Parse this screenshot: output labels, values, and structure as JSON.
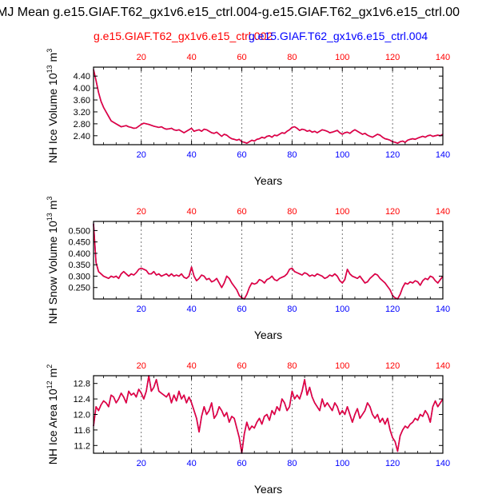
{
  "title": "MJ Mean g.e15.GIAF.T62_gx1v6.e15_ctrl.004-g.e15.GIAF.T62_gx1v6.e15_ctrl.00",
  "subtitle_red": "g.e15.GIAF.T62_gx1v6.e15_ctrl.002",
  "subtitle_blue": "g.e15.GIAF.T62_gx1v6.e15_ctrl.004",
  "colors": {
    "red": "#ff0000",
    "blue": "#0000ff",
    "line_red": "#e8003a",
    "line_blue": "#3030ff"
  },
  "chart_data": [
    {
      "type": "line",
      "ylabel": "NH Ice Volume 10^13 m^3",
      "ylabel_main": "NH Ice Volume 10",
      "ylabel_exp": "13",
      "ylabel_unit": "m",
      "ylabel_unit_exp": "3",
      "xlabel": "Years",
      "xlim": [
        1,
        140
      ],
      "ylim": [
        2.1,
        4.7
      ],
      "yticks": [
        "2.40",
        "2.80",
        "3.20",
        "3.60",
        "4.00",
        "4.40"
      ],
      "xticks_bottom": [
        "20",
        "40",
        "60",
        "80",
        "100",
        "120",
        "140"
      ],
      "xticks_top": [
        "20",
        "40",
        "60",
        "80",
        "100",
        "120",
        "140"
      ],
      "grid": "vertical dashed at every 20 years",
      "series": [
        {
          "name": "g.e15.GIAF.T62_gx1v6.e15_ctrl.002",
          "color": "red",
          "values": [
            4.62,
            4.25,
            3.85,
            3.55,
            3.35,
            3.2,
            3.05,
            2.9,
            2.85,
            2.8,
            2.75,
            2.7,
            2.72,
            2.74,
            2.7,
            2.68,
            2.65,
            2.66,
            2.72,
            2.78,
            2.82,
            2.8,
            2.78,
            2.75,
            2.72,
            2.7,
            2.68,
            2.7,
            2.65,
            2.62,
            2.63,
            2.65,
            2.6,
            2.58,
            2.6,
            2.55,
            2.5,
            2.55,
            2.6,
            2.65,
            2.55,
            2.58,
            2.6,
            2.55,
            2.62,
            2.6,
            2.55,
            2.5,
            2.48,
            2.52,
            2.45,
            2.38,
            2.45,
            2.42,
            2.35,
            2.3,
            2.28,
            2.25,
            2.28,
            2.2,
            2.18,
            2.15,
            2.2,
            2.25,
            2.22,
            2.28,
            2.3,
            2.35,
            2.32,
            2.38,
            2.4,
            2.35,
            2.42,
            2.4,
            2.45,
            2.5,
            2.48,
            2.55,
            2.6,
            2.68,
            2.7,
            2.65,
            2.58,
            2.62,
            2.6,
            2.55,
            2.58,
            2.52,
            2.55,
            2.5,
            2.55,
            2.6,
            2.58,
            2.55,
            2.5,
            2.52,
            2.55,
            2.58,
            2.5,
            2.45,
            2.5,
            2.52,
            2.48,
            2.55,
            2.6,
            2.55,
            2.5,
            2.45,
            2.48,
            2.42,
            2.38,
            2.35,
            2.4,
            2.45,
            2.42,
            2.35,
            2.3,
            2.28,
            2.25,
            2.2,
            2.18,
            2.15,
            2.2,
            2.22,
            2.18,
            2.25,
            2.28,
            2.3,
            2.28,
            2.32,
            2.35,
            2.38,
            2.35,
            2.4,
            2.42,
            2.38,
            2.4,
            2.42,
            2.4,
            2.45
          ]
        },
        {
          "name": "g.e15.GIAF.T62_gx1v6.e15_ctrl.004",
          "color": "blue",
          "values": [
            4.62,
            4.25,
            3.85,
            3.55,
            3.35,
            3.2,
            3.05,
            2.9,
            2.85,
            2.8,
            2.75,
            2.7,
            2.72,
            2.74,
            2.7,
            2.68,
            2.65,
            2.66,
            2.72,
            2.78,
            2.82,
            2.8,
            2.78,
            2.75,
            2.72,
            2.7,
            2.68,
            2.7,
            2.65,
            2.62,
            2.63,
            2.65,
            2.6,
            2.58,
            2.6,
            2.55,
            2.5,
            2.55,
            2.6,
            2.65,
            2.55,
            2.58,
            2.6,
            2.55,
            2.62,
            2.6,
            2.55,
            2.5,
            2.48,
            2.52,
            2.45,
            2.38,
            2.45,
            2.42,
            2.35,
            2.3,
            2.28,
            2.25,
            2.28,
            2.2,
            2.18,
            2.15,
            2.2,
            2.25,
            2.22,
            2.28,
            2.3,
            2.35,
            2.32,
            2.38,
            2.4,
            2.35,
            2.42,
            2.4,
            2.45,
            2.5,
            2.48,
            2.55,
            2.6,
            2.68,
            2.7,
            2.65,
            2.58,
            2.62,
            2.6,
            2.55,
            2.58,
            2.52,
            2.55,
            2.5,
            2.55,
            2.6,
            2.58,
            2.55,
            2.5,
            2.52,
            2.55,
            2.58,
            2.5,
            2.45,
            2.5,
            2.52,
            2.48,
            2.55,
            2.6,
            2.55,
            2.5,
            2.45,
            2.48,
            2.42,
            2.38,
            2.35,
            2.4,
            2.45,
            2.42,
            2.35,
            2.3,
            2.28,
            2.25,
            2.2,
            2.18,
            2.15,
            2.2,
            2.22,
            2.18,
            2.25,
            2.28,
            2.3,
            2.28,
            2.32,
            2.35,
            2.38,
            2.35,
            2.4,
            2.42,
            2.38,
            2.4,
            2.42,
            2.4,
            2.45
          ]
        }
      ]
    },
    {
      "type": "line",
      "ylabel": "NH Snow Volume 10^13 m^3",
      "ylabel_main": "NH Snow Volume 10",
      "ylabel_exp": "13",
      "ylabel_unit": "m",
      "ylabel_unit_exp": "3",
      "xlabel": "Years",
      "xlim": [
        1,
        140
      ],
      "ylim": [
        0.2,
        0.54
      ],
      "yticks": [
        "0.250",
        "0.300",
        "0.350",
        "0.400",
        "0.450",
        "0.500"
      ],
      "xticks_bottom": [
        "20",
        "40",
        "60",
        "80",
        "100",
        "120",
        "140"
      ],
      "xticks_top": [
        "20",
        "40",
        "60",
        "80",
        "100",
        "120",
        "140"
      ],
      "grid": "vertical dashed at every 20 years",
      "series": [
        {
          "name": "g.e15.GIAF.T62_gx1v6.e15_ctrl.002",
          "color": "red",
          "values": [
            0.53,
            0.36,
            0.32,
            0.31,
            0.3,
            0.295,
            0.29,
            0.3,
            0.295,
            0.3,
            0.29,
            0.31,
            0.32,
            0.31,
            0.3,
            0.31,
            0.305,
            0.315,
            0.33,
            0.335,
            0.33,
            0.325,
            0.31,
            0.31,
            0.32,
            0.305,
            0.31,
            0.3,
            0.305,
            0.31,
            0.3,
            0.31,
            0.3,
            0.305,
            0.3,
            0.31,
            0.295,
            0.29,
            0.3,
            0.34,
            0.3,
            0.28,
            0.29,
            0.305,
            0.3,
            0.285,
            0.29,
            0.275,
            0.28,
            0.29,
            0.27,
            0.25,
            0.27,
            0.3,
            0.29,
            0.27,
            0.255,
            0.24,
            0.215,
            0.205,
            0.2,
            0.22,
            0.25,
            0.27,
            0.265,
            0.27,
            0.285,
            0.28,
            0.27,
            0.285,
            0.29,
            0.3,
            0.285,
            0.28,
            0.29,
            0.295,
            0.3,
            0.31,
            0.33,
            0.335,
            0.32,
            0.315,
            0.31,
            0.305,
            0.315,
            0.31,
            0.3,
            0.305,
            0.3,
            0.31,
            0.305,
            0.3,
            0.29,
            0.295,
            0.305,
            0.3,
            0.31,
            0.3,
            0.28,
            0.27,
            0.285,
            0.33,
            0.31,
            0.3,
            0.295,
            0.29,
            0.3,
            0.285,
            0.27,
            0.275,
            0.29,
            0.3,
            0.31,
            0.305,
            0.29,
            0.28,
            0.27,
            0.255,
            0.24,
            0.215,
            0.205,
            0.2,
            0.22,
            0.25,
            0.27,
            0.265,
            0.275,
            0.27,
            0.28,
            0.275,
            0.26,
            0.28,
            0.29,
            0.285,
            0.3,
            0.295,
            0.28,
            0.27,
            0.285,
            0.3
          ]
        },
        {
          "name": "g.e15.GIAF.T62_gx1v6.e15_ctrl.004",
          "color": "blue",
          "values": [
            0.53,
            0.36,
            0.32,
            0.31,
            0.3,
            0.295,
            0.29,
            0.3,
            0.295,
            0.3,
            0.29,
            0.31,
            0.32,
            0.31,
            0.3,
            0.31,
            0.305,
            0.315,
            0.33,
            0.335,
            0.33,
            0.325,
            0.31,
            0.31,
            0.32,
            0.305,
            0.31,
            0.3,
            0.305,
            0.31,
            0.3,
            0.31,
            0.3,
            0.305,
            0.3,
            0.31,
            0.295,
            0.29,
            0.3,
            0.34,
            0.3,
            0.28,
            0.29,
            0.305,
            0.3,
            0.285,
            0.29,
            0.275,
            0.28,
            0.29,
            0.27,
            0.25,
            0.27,
            0.3,
            0.29,
            0.27,
            0.255,
            0.24,
            0.215,
            0.205,
            0.2,
            0.22,
            0.25,
            0.27,
            0.265,
            0.27,
            0.285,
            0.28,
            0.27,
            0.285,
            0.29,
            0.3,
            0.285,
            0.28,
            0.29,
            0.295,
            0.3,
            0.31,
            0.33,
            0.335,
            0.32,
            0.315,
            0.31,
            0.305,
            0.315,
            0.31,
            0.3,
            0.305,
            0.3,
            0.31,
            0.305,
            0.3,
            0.29,
            0.295,
            0.305,
            0.3,
            0.31,
            0.3,
            0.28,
            0.27,
            0.285,
            0.33,
            0.31,
            0.3,
            0.295,
            0.29,
            0.3,
            0.285,
            0.27,
            0.275,
            0.29,
            0.3,
            0.31,
            0.305,
            0.29,
            0.28,
            0.27,
            0.255,
            0.24,
            0.215,
            0.205,
            0.2,
            0.22,
            0.25,
            0.27,
            0.265,
            0.275,
            0.27,
            0.28,
            0.275,
            0.26,
            0.28,
            0.29,
            0.285,
            0.3,
            0.295,
            0.28,
            0.27,
            0.285,
            0.3
          ]
        }
      ]
    },
    {
      "type": "line",
      "ylabel": "NH Ice Area 10^12 m^2",
      "ylabel_main": "NH Ice Area 10",
      "ylabel_exp": "12",
      "ylabel_unit": "m",
      "ylabel_unit_exp": "2",
      "xlabel": "Years",
      "xlim": [
        1,
        140
      ],
      "ylim": [
        11.0,
        13.0
      ],
      "yticks": [
        "11.2",
        "11.6",
        "12.0",
        "12.4",
        "12.8"
      ],
      "xticks_bottom": [
        "20",
        "40",
        "60",
        "80",
        "100",
        "120",
        "140"
      ],
      "xticks_top": [
        "20",
        "40",
        "60",
        "80",
        "100",
        "120",
        "140"
      ],
      "grid": "vertical dashed at every 20 years",
      "series": [
        {
          "name": "g.e15.GIAF.T62_gx1v6.e15_ctrl.002",
          "color": "red",
          "values": [
            11.7,
            12.2,
            12.1,
            12.25,
            12.35,
            12.3,
            12.2,
            12.5,
            12.45,
            12.3,
            12.4,
            12.55,
            12.45,
            12.3,
            12.6,
            12.5,
            12.55,
            12.45,
            12.65,
            12.55,
            12.4,
            12.6,
            13.0,
            12.6,
            12.7,
            12.9,
            12.6,
            12.55,
            12.5,
            12.45,
            12.55,
            12.3,
            12.5,
            12.35,
            12.6,
            12.4,
            12.5,
            12.3,
            12.45,
            12.3,
            12.1,
            11.9,
            11.55,
            11.95,
            12.2,
            12.0,
            12.1,
            12.3,
            11.9,
            12.0,
            12.2,
            12.1,
            11.95,
            12.05,
            11.8,
            11.95,
            11.9,
            11.65,
            11.4,
            11.0,
            11.5,
            11.8,
            11.6,
            11.7,
            11.65,
            11.8,
            11.9,
            11.75,
            11.95,
            12.0,
            11.85,
            12.1,
            12.0,
            12.2,
            12.1,
            12.4,
            12.3,
            12.1,
            12.2,
            12.6,
            12.4,
            12.5,
            12.4,
            12.6,
            12.9,
            12.5,
            12.7,
            12.45,
            12.3,
            12.2,
            12.1,
            12.4,
            12.2,
            12.3,
            12.2,
            12.1,
            12.3,
            12.2,
            12.0,
            12.1,
            12.0,
            12.2,
            12.0,
            11.8,
            12.0,
            12.15,
            11.9,
            12.0,
            12.1,
            12.3,
            12.2,
            12.0,
            11.9,
            12.0,
            11.8,
            11.9,
            11.75,
            11.9,
            11.6,
            11.4,
            11.3,
            11.05,
            11.45,
            11.6,
            11.7,
            11.65,
            11.75,
            11.8,
            11.9,
            11.85,
            12.0,
            11.95,
            12.1,
            12.0,
            11.8,
            12.2,
            12.35,
            12.2,
            12.3,
            12.4
          ]
        },
        {
          "name": "g.e15.GIAF.T62_gx1v6.e15_ctrl.004",
          "color": "blue",
          "values": [
            11.7,
            12.2,
            12.1,
            12.25,
            12.35,
            12.3,
            12.2,
            12.5,
            12.45,
            12.3,
            12.4,
            12.55,
            12.45,
            12.3,
            12.6,
            12.5,
            12.55,
            12.45,
            12.65,
            12.55,
            12.4,
            12.6,
            13.0,
            12.6,
            12.7,
            12.9,
            12.6,
            12.55,
            12.5,
            12.45,
            12.55,
            12.3,
            12.5,
            12.35,
            12.6,
            12.4,
            12.5,
            12.3,
            12.45,
            12.3,
            12.1,
            11.9,
            11.55,
            11.95,
            12.2,
            12.0,
            12.1,
            12.3,
            11.9,
            12.0,
            12.2,
            12.1,
            11.95,
            12.05,
            11.8,
            11.95,
            11.9,
            11.65,
            11.4,
            11.0,
            11.5,
            11.8,
            11.6,
            11.7,
            11.65,
            11.8,
            11.9,
            11.75,
            11.95,
            12.0,
            11.85,
            12.1,
            12.0,
            12.2,
            12.1,
            12.4,
            12.3,
            12.1,
            12.2,
            12.6,
            12.4,
            12.5,
            12.4,
            12.6,
            12.9,
            12.5,
            12.7,
            12.45,
            12.3,
            12.2,
            12.1,
            12.4,
            12.2,
            12.3,
            12.2,
            12.1,
            12.3,
            12.2,
            12.0,
            12.1,
            12.0,
            12.2,
            12.0,
            11.8,
            12.0,
            12.15,
            11.9,
            12.0,
            12.1,
            12.3,
            12.2,
            12.0,
            11.9,
            12.0,
            11.8,
            11.9,
            11.75,
            11.9,
            11.6,
            11.4,
            11.3,
            11.05,
            11.45,
            11.6,
            11.7,
            11.65,
            11.75,
            11.8,
            11.9,
            11.85,
            12.0,
            11.95,
            12.1,
            12.0,
            11.8,
            12.2,
            12.35,
            12.2,
            12.3,
            12.4
          ]
        }
      ]
    }
  ]
}
